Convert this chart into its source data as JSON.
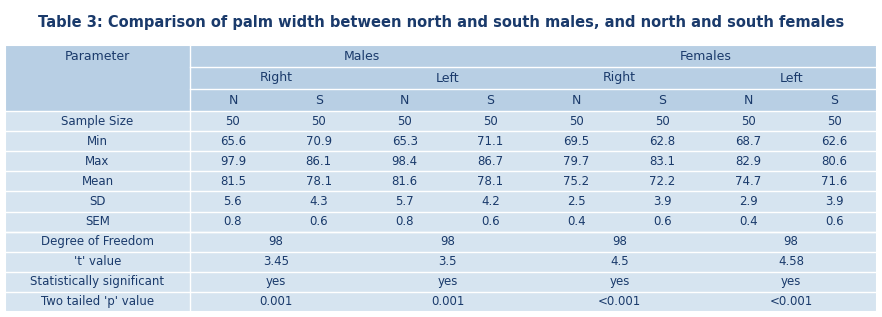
{
  "title": "Table 3: Comparison of palm width between north and south males, and north and south females",
  "bg_white": "#ffffff",
  "bg_table_header": "#b8cfe4",
  "bg_table_data": "#d6e4f0",
  "text_color": "#1a3a6b",
  "title_color": "#1a3a6b",
  "rows": [
    [
      "Sample Size",
      "50",
      "50",
      "50",
      "50",
      "50",
      "50",
      "50",
      "50"
    ],
    [
      "Min",
      "65.6",
      "70.9",
      "65.3",
      "71.1",
      "69.5",
      "62.8",
      "68.7",
      "62.6"
    ],
    [
      "Max",
      "97.9",
      "86.1",
      "98.4",
      "86.7",
      "79.7",
      "83.1",
      "82.9",
      "80.6"
    ],
    [
      "Mean",
      "81.5",
      "78.1",
      "81.6",
      "78.1",
      "75.2",
      "72.2",
      "74.7",
      "71.6"
    ],
    [
      "SD",
      "5.6",
      "4.3",
      "5.7",
      "4.2",
      "2.5",
      "3.9",
      "2.9",
      "3.9"
    ],
    [
      "SEM",
      "0.8",
      "0.6",
      "0.8",
      "0.6",
      "0.4",
      "0.6",
      "0.4",
      "0.6"
    ],
    [
      "Degree of Freedom",
      "98",
      "98",
      "98",
      "98"
    ],
    [
      "'t' value",
      "3.45",
      "3.5",
      "4.5",
      "4.58"
    ],
    [
      "Statistically significant",
      "yes",
      "yes",
      "yes",
      "yes"
    ],
    [
      "Two tailed 'p' value",
      "0.001",
      "0.001",
      "<0.001",
      "<0.001"
    ]
  ]
}
